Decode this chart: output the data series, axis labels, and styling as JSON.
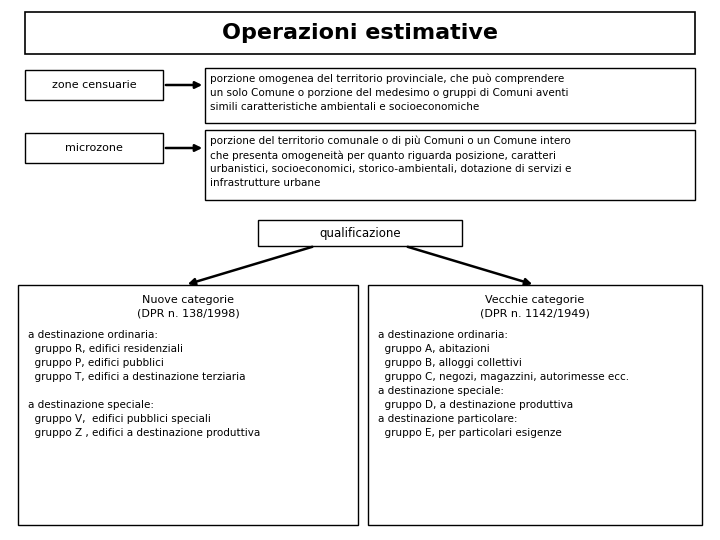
{
  "title": "Operazioni estimative",
  "bg_color": "#ffffff",
  "zone_censuarie_label": "zone censuarie",
  "zone_censuarie_text": "porzione omogenea del territorio provinciale, che può comprendere\nun solo Comune o porzione del medesimo o gruppi di Comuni aventi\nsimili caratteristiche ambientali e socioeconomiche",
  "microzone_label": "microzone",
  "microzone_text": "porzione del territorio comunale o di più Comuni o un Comune intero\nche presenta omogeneità per quanto riguarda posizione, caratteri\nurbanistici, socioeconomici, storico-ambientali, dotazione di servizi e\ninfrastrutture urbane",
  "qualificazione_label": "qualificazione",
  "nuove_title": "Nuove categorie\n(DPR n. 138/1998)",
  "nuove_text": "a destinazione ordinaria:\n  gruppo R, edifici residenziali\n  gruppo P, edifici pubblici\n  gruppo T, edifici a destinazione terziaria\n\na destinazione speciale:\n  gruppo V,  edifici pubblici speciali\n  gruppo Z , edifici a destinazione produttiva",
  "vecchie_title": "Vecchie categorie\n(DPR n. 1142/1949)",
  "vecchie_text": "a destinazione ordinaria:\n  gruppo A, abitazioni\n  gruppo B, alloggi collettivi\n  gruppo C, negozi, magazzini, autorimesse ecc.\na destinazione speciale:\n  gruppo D, a destinazione produttiva\na destinazione particolare:\n  gruppo E, per particolari esigenze"
}
